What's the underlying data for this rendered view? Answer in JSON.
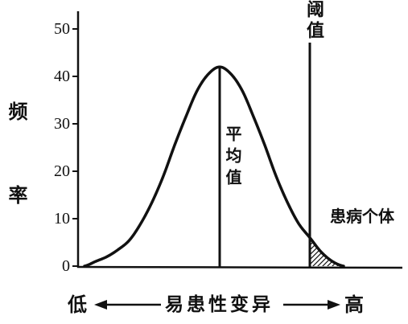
{
  "chart_data": {
    "type": "line",
    "ylabel": "频率",
    "xlabel": "易患性变异",
    "x_low_label": "低",
    "x_high_label": "高",
    "ylim": [
      0,
      50
    ],
    "yticks": [
      0,
      10,
      20,
      30,
      40,
      50
    ],
    "grid": false,
    "series": [
      {
        "values": [
          0,
          1,
          2,
          3.5,
          5.5,
          9,
          13.5,
          19,
          25.5,
          31.5,
          37,
          40.5,
          42,
          40.5,
          37,
          31.5,
          25.5,
          19,
          13.5,
          9,
          6,
          3,
          1,
          0
        ]
      }
    ],
    "markers": [
      {
        "label": "平均值",
        "at_index": 12
      },
      {
        "label": "阈值",
        "at_index": 20
      }
    ],
    "shaded_label": "患病个体"
  },
  "colors": {
    "ink": "#111111",
    "background": "#ffffff"
  }
}
